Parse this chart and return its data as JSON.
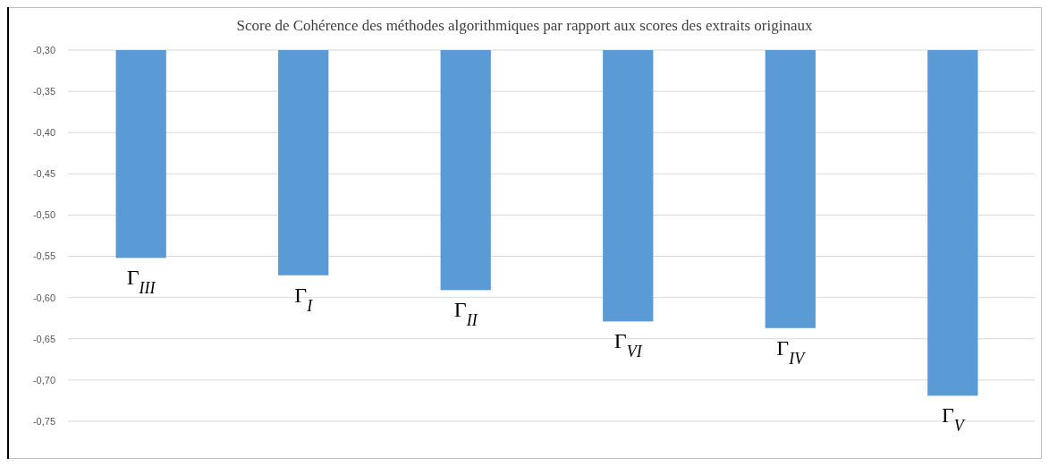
{
  "chart_data": {
    "type": "bar",
    "title": "Score de Cohérence des méthodes algorithmiques par rapport aux scores des extraits originaux",
    "categories": [
      "Γ$_{III}$",
      "Γ$_{I}$",
      "Γ$_{II}$",
      "Γ$_{VI}$",
      "Γ$_{IV}$",
      "Γ$_{V}$"
    ],
    "values": [
      -0.552,
      -0.573,
      -0.591,
      -0.629,
      -0.637,
      -0.719
    ],
    "color": "#5b9bd5",
    "ylim": [
      -0.75,
      -0.3
    ],
    "yticks": [
      {
        "value": -0.3,
        "label": "-0,30"
      },
      {
        "value": -0.35,
        "label": "-0,35"
      },
      {
        "value": -0.4,
        "label": "-0,40"
      },
      {
        "value": -0.45,
        "label": "-0,45"
      },
      {
        "value": -0.5,
        "label": "-0,50"
      },
      {
        "value": -0.55,
        "label": "-0,55"
      },
      {
        "value": -0.6,
        "label": "-0,60"
      },
      {
        "value": -0.65,
        "label": "-0,65"
      },
      {
        "value": -0.7,
        "label": "-0,70"
      },
      {
        "value": -0.75,
        "label": "-0,75"
      }
    ],
    "grid": "y"
  }
}
